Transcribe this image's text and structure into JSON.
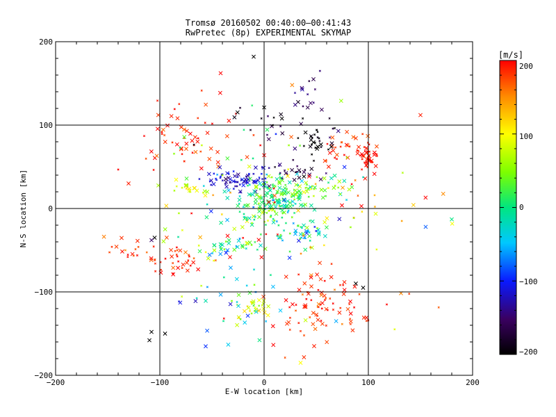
{
  "chart_data": {
    "type": "scatter",
    "title": "Tromsø 20160502 00:40:00–00:41:43",
    "subtitle": "RwPretec (8p) EXPERIMENTAL SKYMAP",
    "xlabel": "E-W location [km]",
    "ylabel": "N-S location [km]",
    "xlim": [
      -200,
      200
    ],
    "ylim": [
      -200,
      200
    ],
    "xticks": [
      "−200",
      "−100",
      "0",
      "100",
      "200"
    ],
    "yticks": [
      "200",
      "100",
      "0",
      "−100",
      "−200"
    ],
    "grid": "major lines at ±100 and 0",
    "colorbar": {
      "label": "[m/s]",
      "range": [
        -200,
        200
      ],
      "ticks": [
        "200",
        "100",
        "0",
        "−100",
        "−200"
      ],
      "colormap": "black→purple→blue→cyan→green→yellow→orange→red"
    },
    "clusters": [
      {
        "cx": -70,
        "cy": 85,
        "sx": 28,
        "sy": 18,
        "n": 55,
        "v": 190,
        "vs": 15
      },
      {
        "cx": 100,
        "cy": 62,
        "sx": 5,
        "sy": 8,
        "n": 45,
        "v": 195,
        "vs": 10
      },
      {
        "cx": 75,
        "cy": 75,
        "sx": 12,
        "sy": 10,
        "n": 25,
        "v": 185,
        "vs": 15
      },
      {
        "cx": 48,
        "cy": 78,
        "sx": 7,
        "sy": 9,
        "n": 28,
        "v": -200,
        "vs": 10
      },
      {
        "cx": 40,
        "cy": 138,
        "sx": 8,
        "sy": 10,
        "n": 14,
        "v": -150,
        "vs": 15
      },
      {
        "cx": -25,
        "cy": 35,
        "sx": 15,
        "sy": 6,
        "n": 70,
        "v": -120,
        "vs": 15
      },
      {
        "cx": 5,
        "cy": 8,
        "sx": 20,
        "sy": 16,
        "n": 180,
        "v": 5,
        "vs": 35
      },
      {
        "cx": 40,
        "cy": 25,
        "sx": 25,
        "sy": 6,
        "n": 45,
        "v": 40,
        "vs": 30
      },
      {
        "cx": -70,
        "cy": 25,
        "sx": 12,
        "sy": 5,
        "n": 20,
        "v": 80,
        "vs": 30
      },
      {
        "cx": -85,
        "cy": -60,
        "sx": 18,
        "sy": 10,
        "n": 40,
        "v": 185,
        "vs": 15
      },
      {
        "cx": -30,
        "cy": -45,
        "sx": 20,
        "sy": 8,
        "n": 40,
        "v": 30,
        "vs": 60
      },
      {
        "cx": 35,
        "cy": -30,
        "sx": 15,
        "sy": 10,
        "n": 40,
        "v": -20,
        "vs": 60
      },
      {
        "cx": 30,
        "cy": 45,
        "sx": 12,
        "sy": 5,
        "n": 25,
        "v": -170,
        "vs": 20
      },
      {
        "cx": 55,
        "cy": -120,
        "sx": 22,
        "sy": 22,
        "n": 90,
        "v": 190,
        "vs": 15
      },
      {
        "cx": -10,
        "cy": -120,
        "sx": 8,
        "sy": 6,
        "n": 25,
        "v": 90,
        "vs": 25
      },
      {
        "cx": -30,
        "cy": -105,
        "sx": 30,
        "sy": 30,
        "n": 30,
        "v": -40,
        "vs": 60
      },
      {
        "cx": -130,
        "cy": -48,
        "sx": 10,
        "sy": 6,
        "n": 12,
        "v": 180,
        "vs": 15
      },
      {
        "cx": 20,
        "cy": 100,
        "sx": 25,
        "sy": 15,
        "n": 25,
        "v": -180,
        "vs": 30
      },
      {
        "cx": 80,
        "cy": 5,
        "sx": 40,
        "sy": 20,
        "n": 20,
        "v": 150,
        "vs": 60
      },
      {
        "cx": 0,
        "cy": 0,
        "sx": 70,
        "sy": 70,
        "n": 110,
        "v": 100,
        "vs": 130
      }
    ],
    "extra_points": [
      {
        "x": -10,
        "y": 182,
        "v": -200
      },
      {
        "x": 150,
        "y": 112,
        "v": 190
      },
      {
        "x": 180,
        "y": -13,
        "v": 0
      },
      {
        "x": 155,
        "y": -22,
        "v": -80
      },
      {
        "x": -130,
        "y": 30,
        "v": 190
      },
      {
        "x": -110,
        "y": -158,
        "v": -200
      },
      {
        "x": -108,
        "y": -148,
        "v": -200
      },
      {
        "x": -95,
        "y": -150,
        "v": -200
      },
      {
        "x": -105,
        "y": -35,
        "v": -200
      },
      {
        "x": -108,
        "y": -38,
        "v": -150
      },
      {
        "x": 95,
        "y": -95,
        "v": -200
      },
      {
        "x": 88,
        "y": -90,
        "v": -200
      },
      {
        "x": 35,
        "y": -185,
        "v": 100
      },
      {
        "x": 48,
        "y": -165,
        "v": 190
      }
    ]
  }
}
